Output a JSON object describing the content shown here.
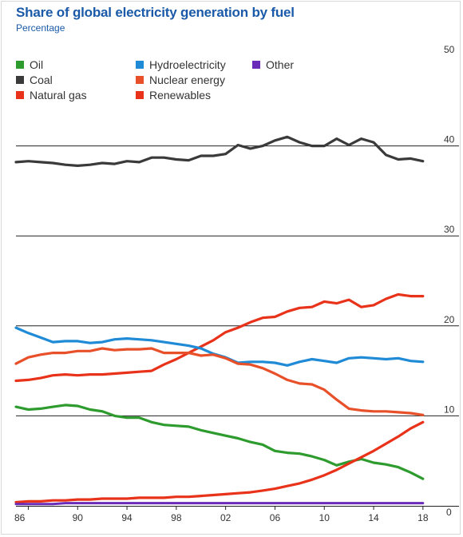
{
  "header": {
    "title": "Share of global electricity generation by fuel",
    "subtitle": "Percentage"
  },
  "chart_data": {
    "type": "line",
    "title": "Share of global electricity generation by fuel",
    "subtitle": "Percentage",
    "xlabel": "",
    "ylabel": "",
    "x": [
      1985,
      1986,
      1987,
      1988,
      1989,
      1990,
      1991,
      1992,
      1993,
      1994,
      1995,
      1996,
      1997,
      1998,
      1999,
      2000,
      2001,
      2002,
      2003,
      2004,
      2005,
      2006,
      2007,
      2008,
      2009,
      2010,
      2011,
      2012,
      2013,
      2014,
      2015,
      2016,
      2017,
      2018
    ],
    "x_ticks": [
      1986,
      1990,
      1994,
      1998,
      2002,
      2006,
      2010,
      2014,
      2018
    ],
    "x_tick_labels": [
      "86",
      "90",
      "94",
      "98",
      "02",
      "06",
      "10",
      "14",
      "18"
    ],
    "ylim": [
      0,
      50
    ],
    "y_ticks": [
      0,
      10,
      20,
      30,
      40,
      50
    ],
    "y_tick_labels": [
      "0",
      "10",
      "20",
      "30",
      "40",
      "50"
    ],
    "y_axis_side": "right",
    "grid": "horizontal at 10, 20, 30, 40",
    "legend_position": "top-left",
    "series": [
      {
        "name": "Oil",
        "color": "#2e9b2e",
        "values": [
          11.0,
          10.7,
          10.8,
          11.0,
          11.2,
          11.1,
          10.7,
          10.5,
          10.0,
          9.8,
          9.8,
          9.3,
          9.0,
          8.9,
          8.8,
          8.4,
          8.1,
          7.8,
          7.5,
          7.1,
          6.8,
          6.1,
          5.9,
          5.8,
          5.5,
          5.1,
          4.5,
          4.9,
          5.2,
          4.8,
          4.6,
          4.3,
          3.7,
          3.0
        ]
      },
      {
        "name": "Coal",
        "color": "#3a3a3a",
        "values": [
          38.2,
          38.3,
          38.2,
          38.1,
          37.9,
          37.8,
          37.9,
          38.1,
          38.0,
          38.3,
          38.2,
          38.7,
          38.7,
          38.5,
          38.4,
          38.9,
          38.9,
          39.1,
          40.1,
          39.7,
          40.0,
          40.6,
          41.0,
          40.4,
          40.0,
          40.0,
          40.8,
          40.1,
          40.8,
          40.4,
          39.0,
          38.5,
          38.6,
          38.3
        ]
      },
      {
        "name": "Natural gas",
        "color": "#e8321a",
        "values": [
          13.9,
          14.0,
          14.2,
          14.5,
          14.6,
          14.5,
          14.6,
          14.6,
          14.7,
          14.8,
          14.9,
          15.0,
          15.7,
          16.3,
          17.0,
          17.7,
          18.4,
          19.3,
          19.8,
          20.4,
          20.9,
          21.0,
          21.6,
          22.0,
          22.1,
          22.7,
          22.5,
          22.9,
          22.1,
          22.3,
          23.0,
          23.5,
          23.3,
          23.3
        ]
      },
      {
        "name": "Hydroelectricity",
        "color": "#1f8ad6",
        "values": [
          19.8,
          19.2,
          18.7,
          18.2,
          18.3,
          18.3,
          18.1,
          18.2,
          18.5,
          18.6,
          18.5,
          18.4,
          18.2,
          18.0,
          17.8,
          17.5,
          16.9,
          16.5,
          15.9,
          16.0,
          16.0,
          15.9,
          15.6,
          16.0,
          16.3,
          16.1,
          15.9,
          16.4,
          16.5,
          16.4,
          16.3,
          16.4,
          16.1,
          16.0
        ]
      },
      {
        "name": "Nuclear energy",
        "color": "#e8502a",
        "values": [
          15.8,
          16.5,
          16.8,
          17.0,
          17.0,
          17.2,
          17.2,
          17.5,
          17.3,
          17.4,
          17.4,
          17.5,
          17.0,
          17.0,
          17.0,
          16.7,
          16.8,
          16.4,
          15.8,
          15.7,
          15.3,
          14.7,
          14.0,
          13.6,
          13.5,
          12.9,
          11.8,
          10.8,
          10.6,
          10.5,
          10.5,
          10.4,
          10.3,
          10.1
        ]
      },
      {
        "name": "Renewables",
        "color": "#e8321a",
        "values": [
          0.4,
          0.5,
          0.5,
          0.6,
          0.6,
          0.7,
          0.7,
          0.8,
          0.8,
          0.8,
          0.9,
          0.9,
          0.9,
          1.0,
          1.0,
          1.1,
          1.2,
          1.3,
          1.4,
          1.5,
          1.7,
          1.9,
          2.2,
          2.5,
          2.9,
          3.4,
          4.0,
          4.7,
          5.4,
          6.1,
          6.9,
          7.7,
          8.6,
          9.3
        ]
      },
      {
        "name": "Other",
        "color": "#6a2bb8",
        "values": [
          0.2,
          0.2,
          0.2,
          0.2,
          0.3,
          0.3,
          0.3,
          0.3,
          0.3,
          0.3,
          0.3,
          0.3,
          0.3,
          0.3,
          0.3,
          0.3,
          0.3,
          0.3,
          0.3,
          0.3,
          0.3,
          0.3,
          0.3,
          0.3,
          0.3,
          0.3,
          0.3,
          0.3,
          0.3,
          0.3,
          0.3,
          0.3,
          0.3,
          0.3
        ]
      }
    ],
    "legend": [
      {
        "label": "Oil",
        "icon": "square-green",
        "color": "#2e9b2e"
      },
      {
        "label": "Coal",
        "icon": "square-black",
        "color": "#3a3a3a"
      },
      {
        "label": "Natural gas",
        "icon": "square-red",
        "color": "#e8321a"
      },
      {
        "label": "Hydroelectricity",
        "icon": "square-blue",
        "color": "#1f8ad6"
      },
      {
        "label": "Nuclear energy",
        "icon": "square-orange",
        "color": "#e8502a"
      },
      {
        "label": "Renewables",
        "icon": "square-red",
        "color": "#e8321a"
      },
      {
        "label": "Other",
        "icon": "square-purple",
        "color": "#6a2bb8"
      }
    ]
  }
}
